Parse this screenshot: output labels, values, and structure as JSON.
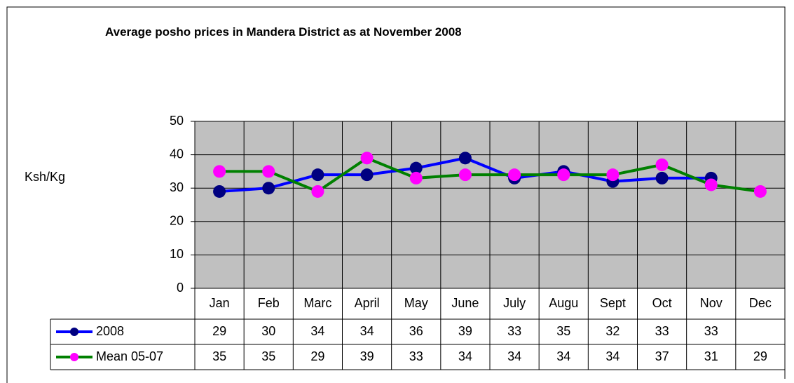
{
  "chart_data": {
    "type": "line",
    "title": "Average posho prices in Mandera District as at November 2008",
    "y_label": "Ksh/Kg",
    "categories": [
      "Jan",
      "Feb",
      "Marc",
      "April",
      "May",
      "June",
      "July",
      "Augu",
      "Sept",
      "Oct",
      "Nov",
      "Dec"
    ],
    "series": [
      {
        "name": "2008",
        "color": "#0000ff",
        "marker_color": "#000080",
        "values": [
          29,
          30,
          34,
          34,
          36,
          39,
          33,
          35,
          32,
          33,
          33,
          null
        ]
      },
      {
        "name": "Mean 05-07",
        "color": "#008000",
        "marker_color": "#ff00ff",
        "values": [
          35,
          35,
          29,
          39,
          33,
          34,
          34,
          34,
          34,
          37,
          31,
          29
        ]
      }
    ],
    "ylim": [
      0,
      50
    ],
    "yticks": [
      0,
      10,
      20,
      30,
      40,
      50
    ],
    "grid": true
  }
}
